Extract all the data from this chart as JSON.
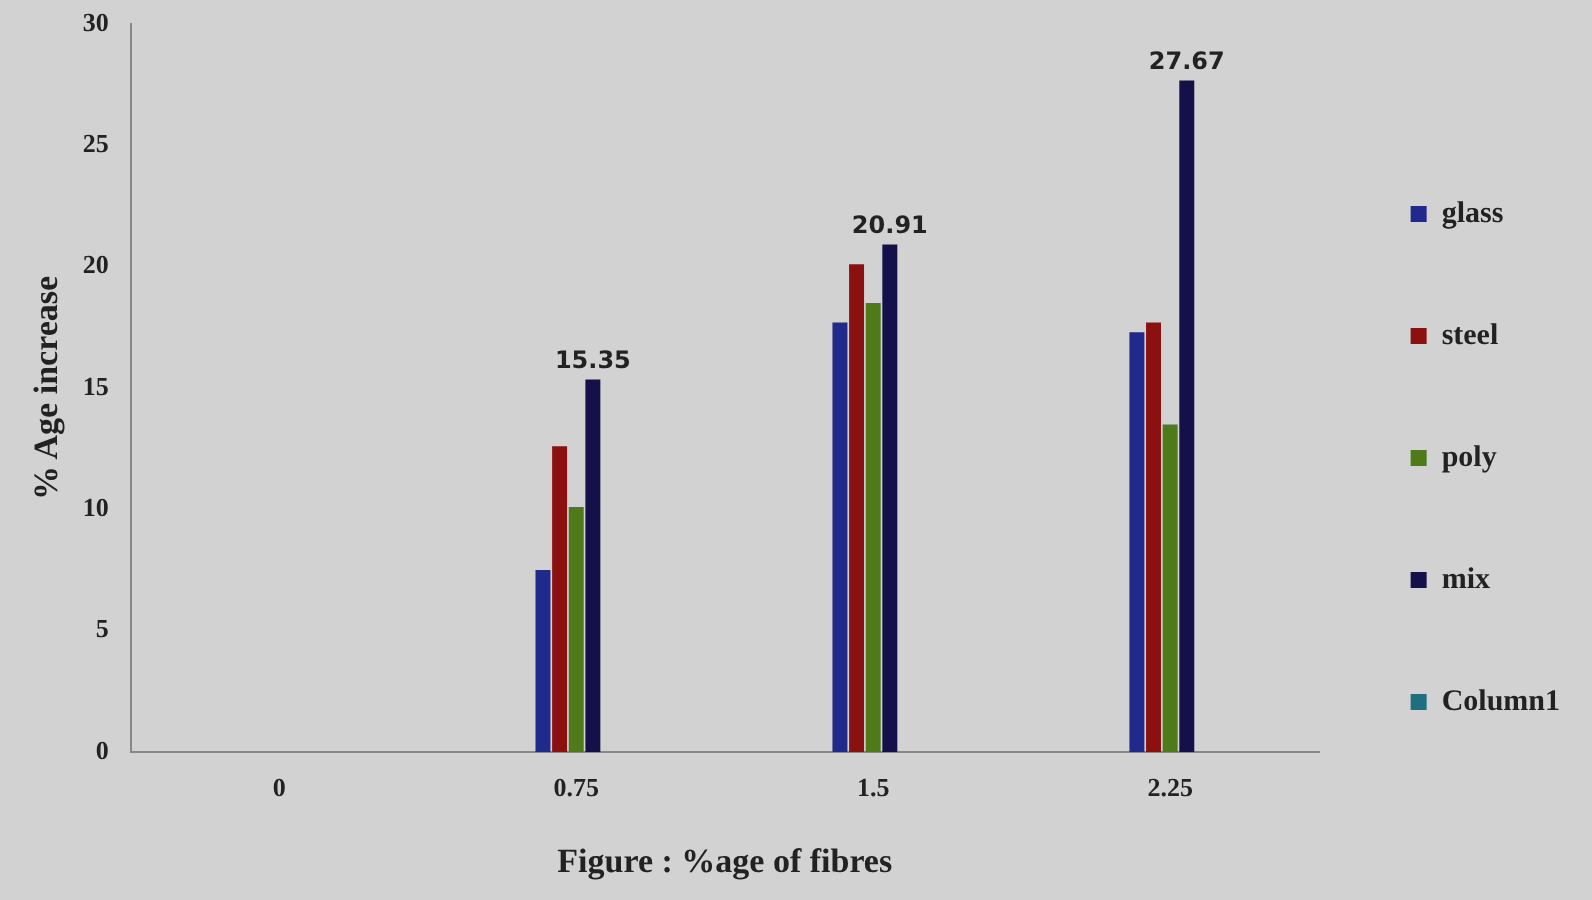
{
  "chart_data": {
    "type": "bar",
    "xlabel": "Figure : %age of fibres",
    "ylabel": "% Age increase",
    "categories": [
      "0",
      "0.75",
      "1.5",
      "2.25"
    ],
    "series": [
      {
        "name": "glass",
        "color": "#1f2a8a",
        "values": [
          null,
          7.5,
          17.7,
          17.3
        ]
      },
      {
        "name": "steel",
        "color": "#8b1010",
        "values": [
          null,
          12.6,
          20.1,
          17.7
        ]
      },
      {
        "name": "poly",
        "color": "#4e7a1a",
        "values": [
          null,
          10.1,
          18.5,
          13.5
        ]
      },
      {
        "name": "mix",
        "color": "#14104a",
        "values": [
          null,
          15.35,
          20.91,
          27.67
        ],
        "value_labels": [
          null,
          "15.35",
          "20.91",
          "27.67"
        ]
      },
      {
        "name": "Column1",
        "color": "#1f6f80",
        "values": [
          null,
          null,
          null,
          null
        ]
      }
    ],
    "ylim": [
      0,
      30
    ],
    "yticks": [
      0,
      5,
      10,
      15,
      20,
      25,
      30
    ],
    "grid": false,
    "legend": "right"
  }
}
